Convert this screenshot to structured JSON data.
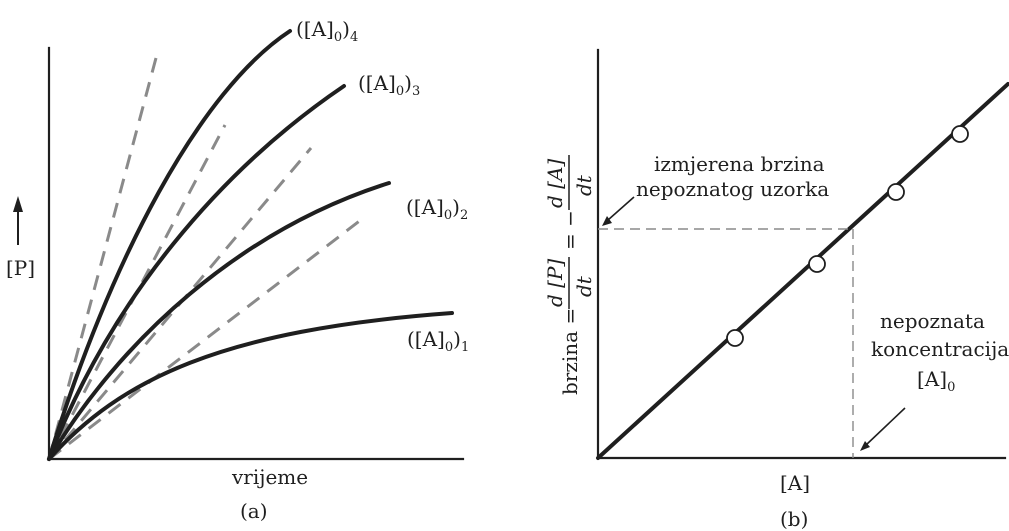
{
  "panel_a": {
    "caption": "(a)",
    "x_label": "vrijeme",
    "y_label": "[P]",
    "curves": [
      {
        "id": "c1",
        "label_main": "([A]",
        "label_sub": "0",
        "label_close": ")",
        "label_index": "1"
      },
      {
        "id": "c2",
        "label_main": "([A]",
        "label_sub": "0",
        "label_close": ")",
        "label_index": "2"
      },
      {
        "id": "c3",
        "label_main": "([A]",
        "label_sub": "0",
        "label_close": ")",
        "label_index": "3"
      },
      {
        "id": "c4",
        "label_main": "([A]",
        "label_sub": "0",
        "label_close": ")",
        "label_index": "4"
      }
    ]
  },
  "panel_b": {
    "caption": "(b)",
    "x_label": "[A]",
    "y_label_prefix": "brzina =",
    "y_label_dP_num": "d [P]",
    "y_label_dP_den": "dt",
    "y_label_equals": "= −",
    "y_label_dA_num": "d [A]",
    "y_label_dA_den": "dt",
    "measured_rate_line1": "izmjerena brzina",
    "measured_rate_line2": "nepoznatog uzorka",
    "unknown_conc_line1": "nepoznata",
    "unknown_conc_line2": "koncentracija",
    "unknown_conc_line3": "[A]",
    "unknown_conc_sub": "0"
  },
  "colors": {
    "ink": "#1f1f1f",
    "dashed": "#8a8a8a",
    "marker_fill": "#ffffff"
  }
}
